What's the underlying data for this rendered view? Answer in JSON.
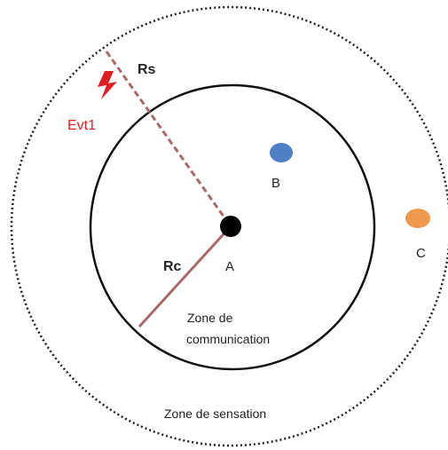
{
  "labels": {
    "rs": "Rs",
    "rc": "Rc",
    "evt": "Evt1",
    "a": "A",
    "b": "B",
    "c": "C",
    "zone_comm_1": "Zone de",
    "zone_comm_2": "communication",
    "zone_sens": "Zone de sensation"
  }
}
